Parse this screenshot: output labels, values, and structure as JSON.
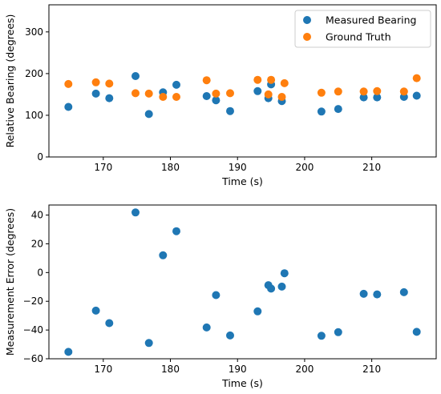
{
  "colors": {
    "measured": "#1f77b4",
    "truth": "#ff7f0e"
  },
  "chart_data": [
    {
      "type": "scatter",
      "title": "",
      "xlabel": "Time (s)",
      "ylabel": "Relative Bearing (degrees)",
      "xlim": [
        161.9,
        219.6
      ],
      "ylim": [
        0,
        365
      ],
      "xticks": [
        170,
        180,
        190,
        200,
        210
      ],
      "yticks": [
        0,
        100,
        200,
        300
      ],
      "legend_position": "top-right",
      "grid": false,
      "series": [
        {
          "name": "Measured Bearing",
          "color": "#1f77b4",
          "x": [
            164.8,
            168.9,
            170.9,
            174.8,
            176.8,
            178.9,
            180.9,
            185.4,
            186.8,
            188.9,
            193.0,
            194.6,
            195.0,
            196.6,
            202.5,
            205.0,
            208.8,
            210.8,
            214.8,
            216.7
          ],
          "y": [
            120,
            152,
            141,
            194,
            103,
            155,
            173,
            146,
            136,
            110,
            158,
            141,
            174,
            134,
            109,
            115,
            143,
            143,
            144,
            147
          ]
        },
        {
          "name": "Ground Truth",
          "color": "#ff7f0e",
          "x": [
            164.8,
            168.9,
            170.9,
            174.8,
            176.8,
            178.9,
            180.9,
            185.4,
            186.8,
            188.9,
            193.0,
            194.6,
            195.0,
            196.6,
            197.0,
            202.5,
            205.0,
            208.8,
            210.8,
            214.8,
            216.7
          ],
          "y": [
            175,
            179,
            176,
            153,
            152,
            144,
            144,
            184,
            152,
            153,
            185,
            150,
            185,
            144,
            177,
            154,
            157,
            157,
            158,
            157,
            189
          ]
        }
      ]
    },
    {
      "type": "scatter",
      "title": "",
      "xlabel": "Time (s)",
      "ylabel": "Measurement Error (degrees)",
      "xlim": [
        161.9,
        219.6
      ],
      "ylim": [
        -60,
        47
      ],
      "xticks": [
        170,
        180,
        190,
        200,
        210
      ],
      "yticks": [
        -60,
        -40,
        -20,
        0,
        20,
        40
      ],
      "grid": false,
      "series": [
        {
          "color": "#1f77b4",
          "x": [
            164.8,
            168.9,
            170.9,
            174.8,
            176.8,
            178.9,
            180.9,
            185.4,
            186.8,
            188.9,
            193.0,
            194.6,
            195.0,
            196.6,
            197.0,
            202.5,
            205.0,
            208.8,
            210.8,
            214.8,
            216.7
          ],
          "y": [
            -55.2,
            -26.5,
            -35.2,
            41.8,
            -49.0,
            12.0,
            28.8,
            -38.2,
            -15.7,
            -43.8,
            -27.0,
            -8.8,
            -11.2,
            -9.8,
            -0.5,
            -44.0,
            -41.5,
            -14.8,
            -15.2,
            -13.7,
            -41.3
          ]
        }
      ]
    }
  ]
}
